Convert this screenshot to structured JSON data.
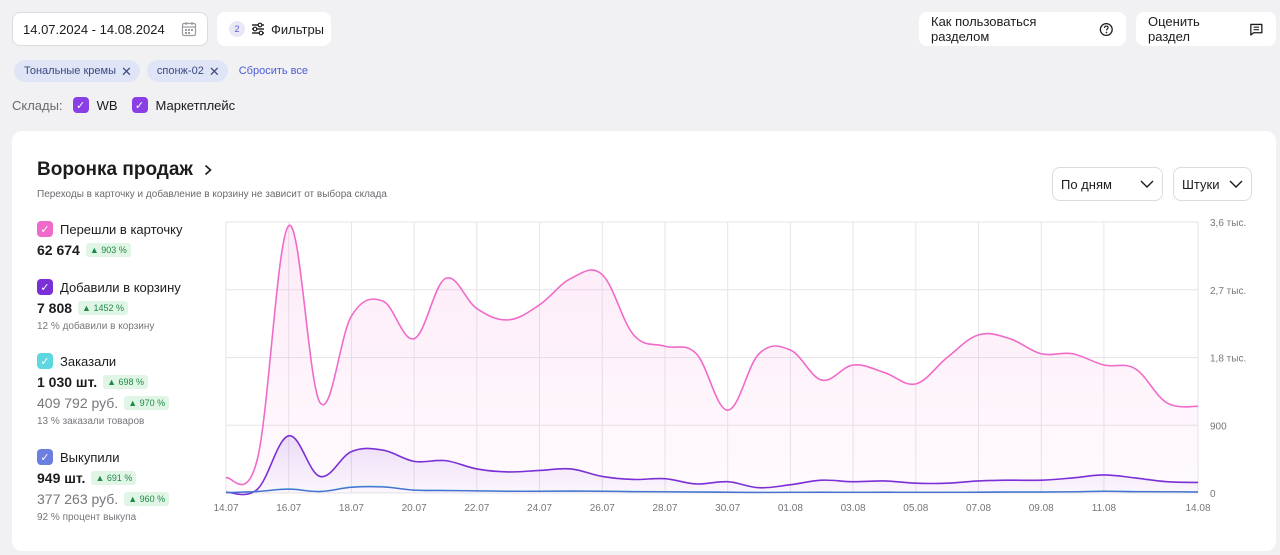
{
  "filters": {
    "date_range": "14.07.2024 - 14.08.2024",
    "filters_count": "2",
    "filters_label": "Фильтры",
    "help_label": "Как пользоваться разделом",
    "rate_label": "Оценить раздел"
  },
  "chips": [
    "Тональные кремы",
    "спонж-02"
  ],
  "reset_label": "Сбросить все",
  "warehouses": {
    "label": "Склады:",
    "items": [
      {
        "label": "WB",
        "checked": true
      },
      {
        "label": "Маркетплейс",
        "checked": true
      }
    ]
  },
  "card": {
    "title": "Воронка продаж",
    "subtitle": "Переходы в карточку и добавление в корзину не зависит от выбора склада",
    "period_select": "По дням",
    "unit_select": "Штуки"
  },
  "metrics": [
    {
      "label": "Перешли в карточку",
      "value": "62 674",
      "change": "903 %",
      "color": "#f06bc9"
    },
    {
      "label": "Добавили в корзину",
      "value": "7 808",
      "change": "1452 %",
      "note": "12 % добавили в корзину",
      "color": "#7b2fd6"
    },
    {
      "label": "Заказали",
      "value": "1 030 шт.",
      "change": "698 %",
      "value2": "409 792 руб.",
      "change2": "970 %",
      "note": "13 % заказали товаров",
      "color": "#5ed8e0"
    },
    {
      "label": "Выкупили",
      "value": "949 шт.",
      "change": "691 %",
      "value2": "377 263 руб.",
      "change2": "960 %",
      "note": "92 % процент выкупа",
      "color": "#6a7fe0"
    }
  ],
  "chart_data": {
    "type": "line",
    "x": [
      "14.07",
      "15.07",
      "16.07",
      "17.07",
      "18.07",
      "19.07",
      "20.07",
      "21.07",
      "22.07",
      "23.07",
      "24.07",
      "25.07",
      "26.07",
      "27.07",
      "28.07",
      "29.07",
      "30.07",
      "31.07",
      "01.08",
      "02.08",
      "03.08",
      "04.08",
      "05.08",
      "06.08",
      "07.08",
      "08.08",
      "09.08",
      "10.08",
      "11.08",
      "12.08",
      "13.08",
      "14.08"
    ],
    "x_tick_labels": [
      "14.07",
      "16.07",
      "18.07",
      "20.07",
      "22.07",
      "24.07",
      "26.07",
      "28.07",
      "30.07",
      "01.08",
      "03.08",
      "05.08",
      "07.08",
      "09.08",
      "11.08",
      "14.08"
    ],
    "y_tick_labels": [
      "3,6 тыс.",
      "2,7 тыс.",
      "1,8 тыс.",
      "900",
      "0"
    ],
    "ylim": [
      0,
      3600
    ],
    "series": [
      {
        "name": "Перешли в карточку",
        "color": "#f06bc9",
        "values": [
          200,
          450,
          3550,
          1200,
          2350,
          2550,
          2050,
          2850,
          2450,
          2300,
          2500,
          2850,
          2900,
          2100,
          1950,
          1850,
          1100,
          1850,
          1900,
          1500,
          1700,
          1600,
          1450,
          1800,
          2100,
          2050,
          1850,
          1850,
          1700,
          1650,
          1200,
          1150
        ]
      },
      {
        "name": "Добавили в корзину",
        "color": "#7b2fd6",
        "values": [
          10,
          50,
          760,
          220,
          550,
          570,
          420,
          430,
          320,
          280,
          300,
          320,
          220,
          180,
          190,
          120,
          150,
          70,
          110,
          170,
          150,
          160,
          130,
          130,
          160,
          170,
          170,
          200,
          240,
          200,
          150,
          140
        ]
      },
      {
        "name": "Заказали",
        "color": "#5ed8e0",
        "values": [
          5,
          20,
          55,
          20,
          80,
          85,
          40,
          35,
          30,
          25,
          25,
          28,
          25,
          20,
          18,
          15,
          12,
          8,
          10,
          12,
          10,
          12,
          10,
          10,
          12,
          15,
          15,
          18,
          25,
          20,
          18,
          15
        ]
      },
      {
        "name": "Выкупили",
        "color": "#4a6fd0",
        "values": [
          5,
          20,
          50,
          20,
          75,
          80,
          38,
          33,
          28,
          23,
          23,
          25,
          23,
          18,
          16,
          13,
          10,
          7,
          9,
          10,
          9,
          10,
          9,
          9,
          10,
          13,
          13,
          16,
          22,
          18,
          16,
          13
        ]
      }
    ]
  }
}
